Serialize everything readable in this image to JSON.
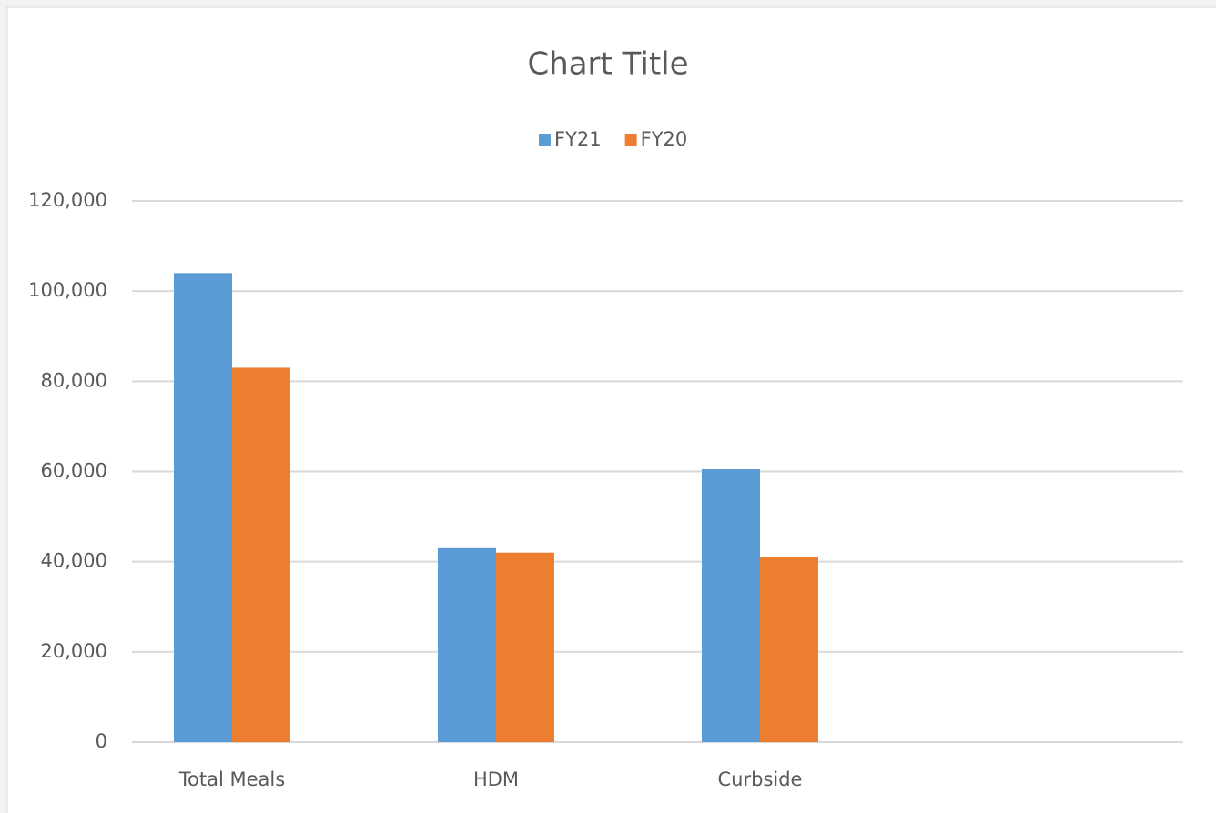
{
  "chart_data": {
    "type": "bar",
    "title": "Chart Title",
    "categories": [
      "Total Meals",
      "HDM",
      "Curbside",
      null
    ],
    "series": [
      {
        "name": "FY21",
        "color": "#5b9bd5",
        "values": [
          104000,
          43000,
          60500,
          null
        ]
      },
      {
        "name": "FY20",
        "color": "#ed7d31",
        "values": [
          83000,
          42000,
          41000,
          null
        ]
      }
    ],
    "ylim": [
      0,
      120000
    ],
    "yticks": [
      0,
      {
        "value": 20000,
        "label": "20,000"
      },
      {
        "value": 40000,
        "label": "40,000"
      },
      {
        "value": 60000,
        "label": "60,000"
      },
      {
        "value": 80000,
        "label": "80,000"
      },
      {
        "value": 100000,
        "label": "100,000"
      },
      {
        "value": 120000,
        "label": "120,000"
      }
    ],
    "grid": true,
    "legend": "top"
  }
}
